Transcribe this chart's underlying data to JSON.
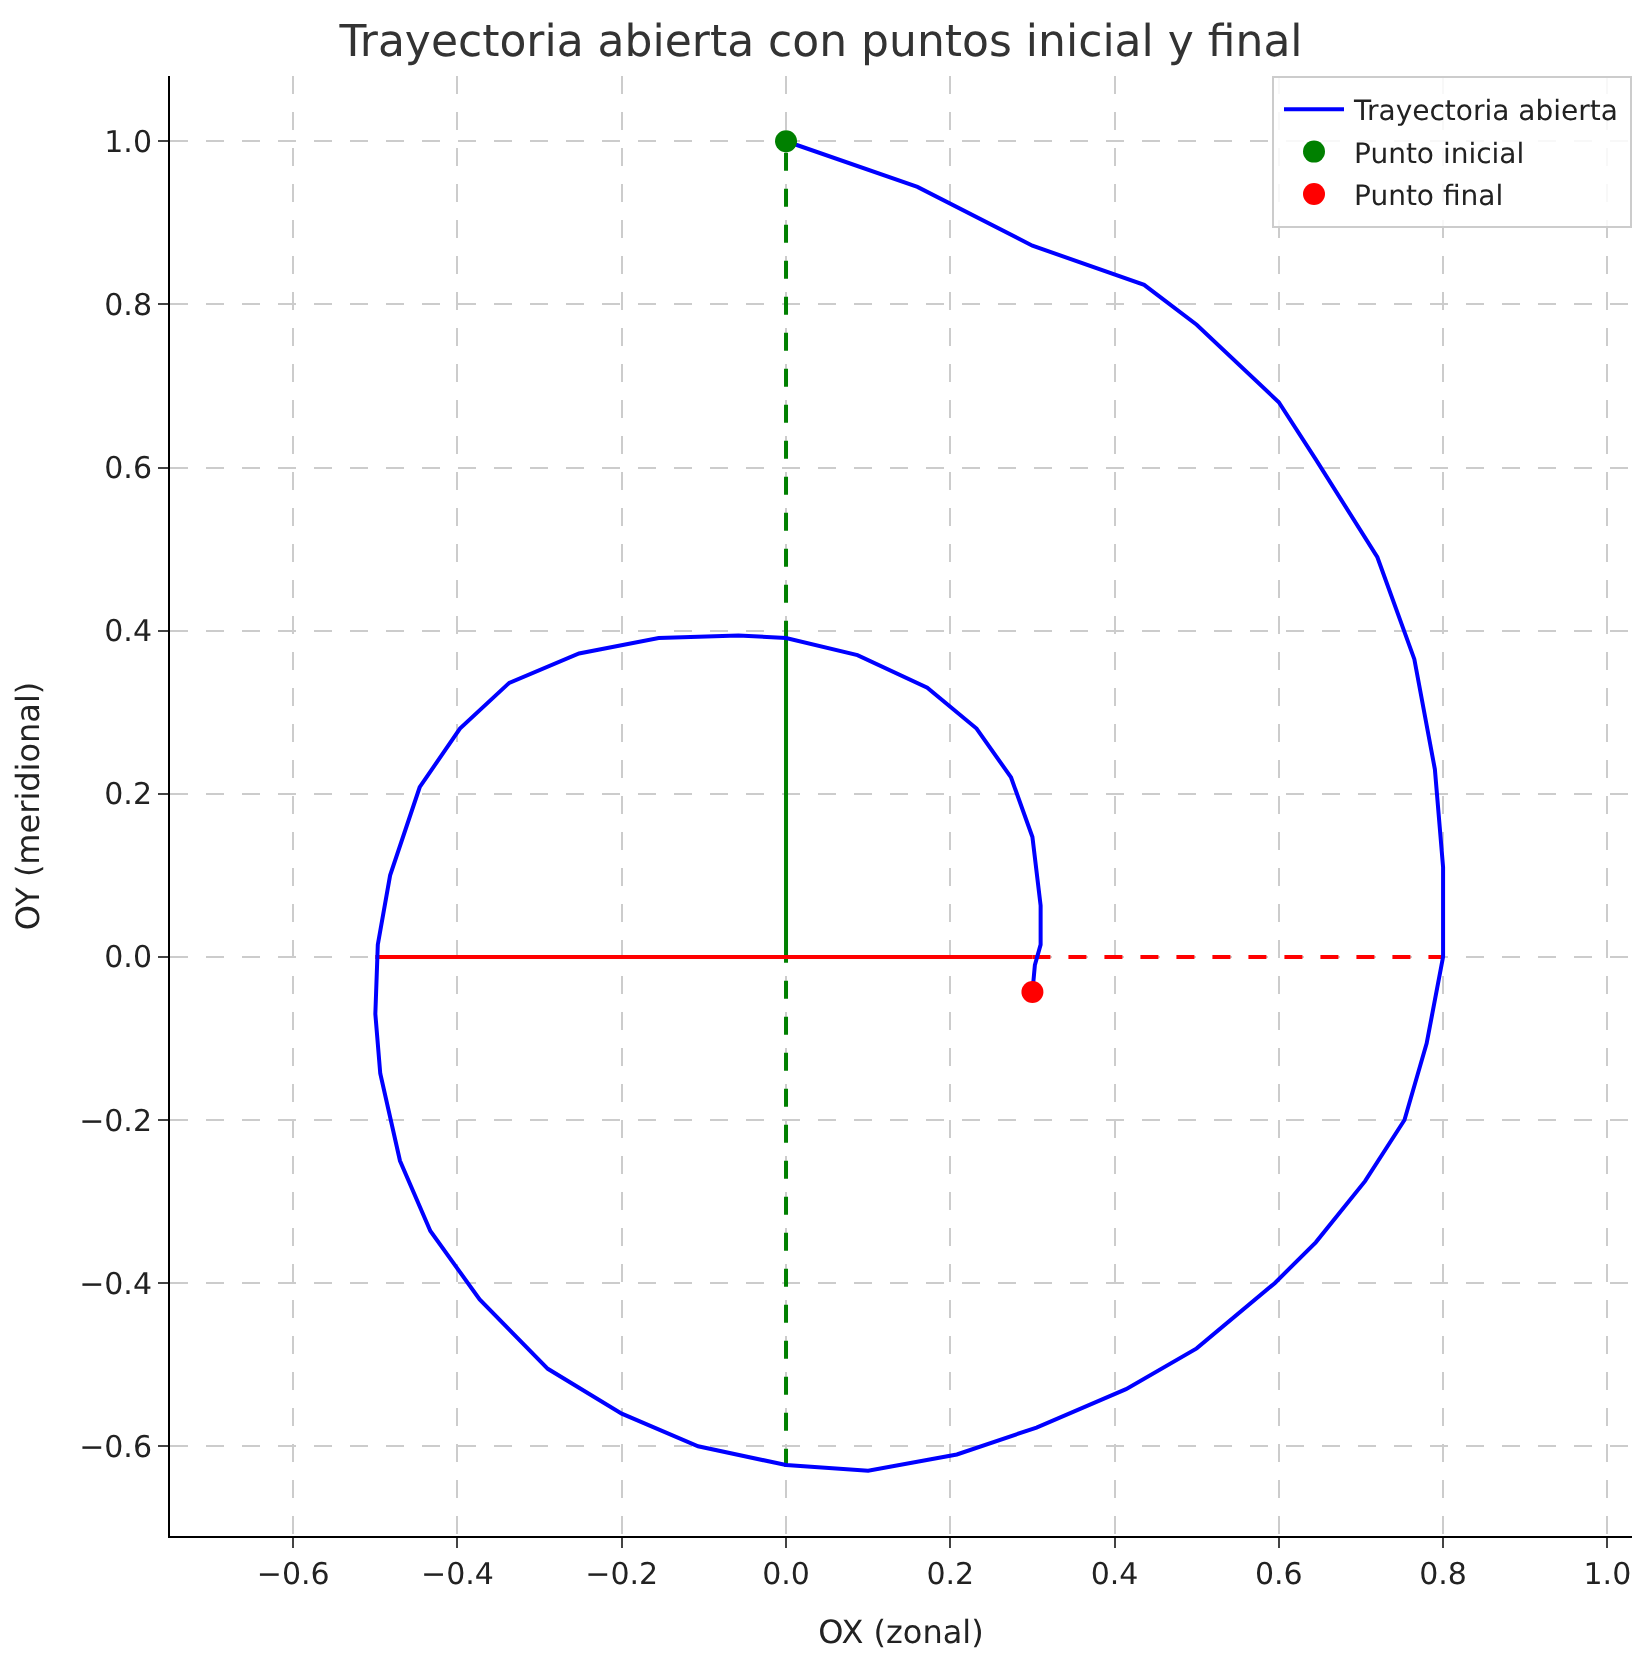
{
  "chart_data": {
    "type": "line",
    "title": "Trayectoria abierta con puntos inicial y final",
    "xlabel": "OX (zonal)",
    "ylabel": "OY (meridional)",
    "xlim": [
      -0.75,
      1.03
    ],
    "ylim": [
      -0.71,
      1.08
    ],
    "xticks": [
      {
        "value": -0.6,
        "label": "−0.6"
      },
      {
        "value": -0.4,
        "label": "−0.4"
      },
      {
        "value": -0.2,
        "label": "−0.2"
      },
      {
        "value": 0,
        "label": "0.0"
      },
      {
        "value": 0.2,
        "label": "0.2"
      },
      {
        "value": 0.4,
        "label": "0.4"
      },
      {
        "value": 0.6,
        "label": "0.6"
      },
      {
        "value": 0.8,
        "label": "0.8"
      },
      {
        "value": 1,
        "label": "1.0"
      }
    ],
    "yticks": [
      {
        "value": -0.6,
        "label": "−0.6"
      },
      {
        "value": -0.4,
        "label": "−0.4"
      },
      {
        "value": -0.2,
        "label": "−0.2"
      },
      {
        "value": 0,
        "label": "0.0"
      },
      {
        "value": 0.2,
        "label": "0.2"
      },
      {
        "value": 0.4,
        "label": "0.4"
      },
      {
        "value": 0.6,
        "label": "0.6"
      },
      {
        "value": 0.8,
        "label": "0.8"
      },
      {
        "value": 1,
        "label": "1.0"
      }
    ],
    "grid": true,
    "legend": "top right",
    "series": [
      {
        "line_style": "dashed",
        "color": "#008000",
        "x": [
          0,
          0
        ],
        "values": [
          -0.625,
          0.0
        ]
      },
      {
        "line_style": "solid",
        "color": "#008000",
        "x": [
          0,
          0
        ],
        "values": [
          0.0,
          0.39
        ]
      },
      {
        "line_style": "dashed",
        "color": "#008000",
        "x": [
          0,
          0
        ],
        "values": [
          0.39,
          1.0
        ]
      },
      {
        "line_style": "solid",
        "color": "#ff0000",
        "x": [
          -0.5,
          0.3
        ],
        "values": [
          0.0,
          0.0
        ]
      },
      {
        "line_style": "dashed",
        "color": "#ff0000",
        "x": [
          0.3,
          0.8
        ],
        "values": [
          0.0,
          0.0
        ]
      },
      {
        "name": "Trayectoria abierta",
        "line_style": "solid",
        "color": "#0000ff",
        "x": [
          0.0,
          0.16,
          0.3,
          0.436,
          0.5,
          0.6,
          0.645,
          0.72,
          0.765,
          0.79,
          0.8,
          0.8,
          0.78,
          0.753,
          0.705,
          0.645,
          0.595,
          0.5,
          0.414,
          0.305,
          0.208,
          0.1,
          0.0,
          -0.107,
          -0.2,
          -0.29,
          -0.373,
          -0.433,
          -0.47,
          -0.494,
          -0.5,
          -0.497,
          -0.482,
          -0.446,
          -0.397,
          -0.337,
          -0.252,
          -0.155,
          -0.058,
          0.0,
          0.087,
          0.172,
          0.232,
          0.274,
          0.3,
          0.31,
          0.31,
          0.303,
          0.3
        ],
        "values": [
          1.0,
          0.944,
          0.872,
          0.824,
          0.775,
          0.68,
          0.61,
          0.49,
          0.365,
          0.23,
          0.11,
          0.0,
          -0.106,
          -0.2,
          -0.275,
          -0.35,
          -0.4,
          -0.48,
          -0.53,
          -0.577,
          -0.61,
          -0.63,
          -0.623,
          -0.6,
          -0.56,
          -0.505,
          -0.42,
          -0.336,
          -0.25,
          -0.143,
          -0.07,
          0.015,
          0.1,
          0.208,
          0.28,
          0.336,
          0.372,
          0.391,
          0.394,
          0.391,
          0.37,
          0.33,
          0.28,
          0.22,
          0.147,
          0.063,
          0.015,
          -0.01,
          -0.043
        ]
      },
      {
        "type": "scatter",
        "name": "Punto inicial",
        "marker": "circle",
        "color": "#008000",
        "x": [
          0.0
        ],
        "values": [
          1.0
        ]
      },
      {
        "type": "scatter",
        "name": "Punto final",
        "marker": "circle",
        "color": "#ff0000",
        "x": [
          0.3
        ],
        "values": [
          -0.043
        ]
      }
    ]
  }
}
